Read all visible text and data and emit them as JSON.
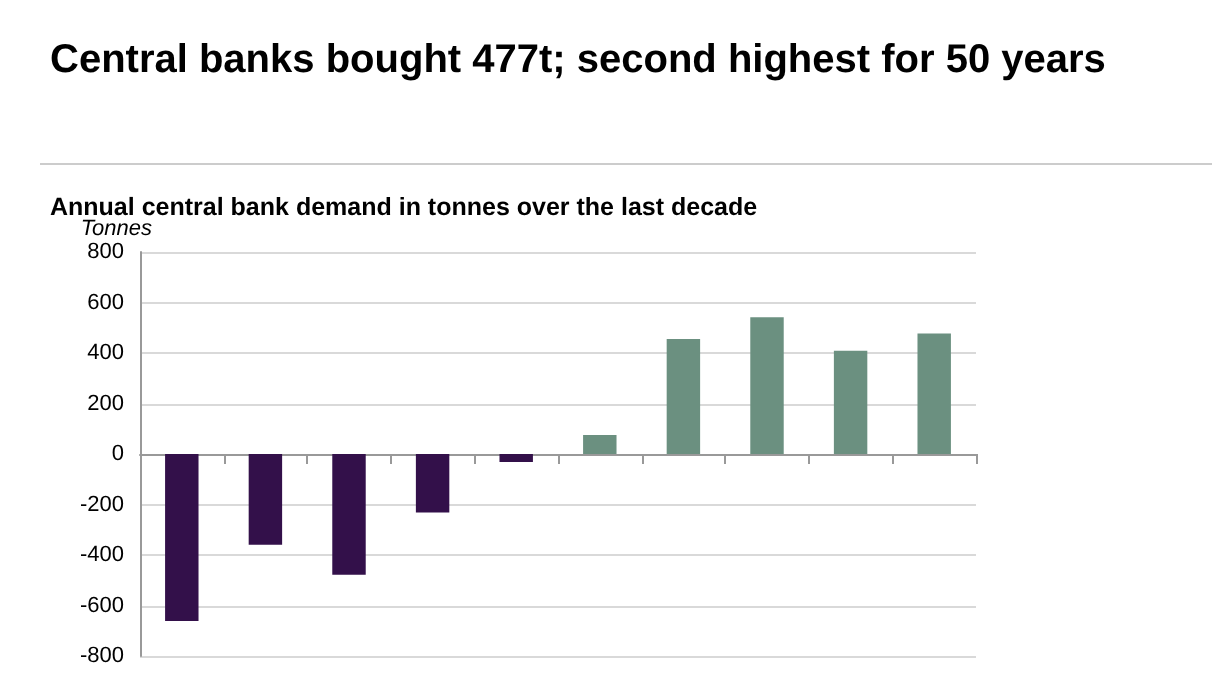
{
  "chart_data": {
    "type": "bar",
    "title": "Central banks bought 477t; second highest for 50 years",
    "subtitle": "Annual central bank demand in tonnes over the last decade",
    "ylabel": "Tonnes",
    "categories": [
      null,
      null,
      null,
      null,
      null,
      null,
      null,
      null,
      null,
      null
    ],
    "values": [
      -661,
      -359,
      -478,
      -232,
      -32,
      75,
      455,
      542,
      409,
      477
    ],
    "colors": [
      "#33104a",
      "#33104a",
      "#33104a",
      "#33104a",
      "#33104a",
      "#6b9080",
      "#6b9080",
      "#6b9080",
      "#6b9080",
      "#6b9080"
    ],
    "ylim": [
      -800,
      800
    ],
    "yticks": [
      -800,
      -600,
      -400,
      -200,
      0,
      200,
      400,
      600,
      800
    ],
    "grid": "y"
  }
}
